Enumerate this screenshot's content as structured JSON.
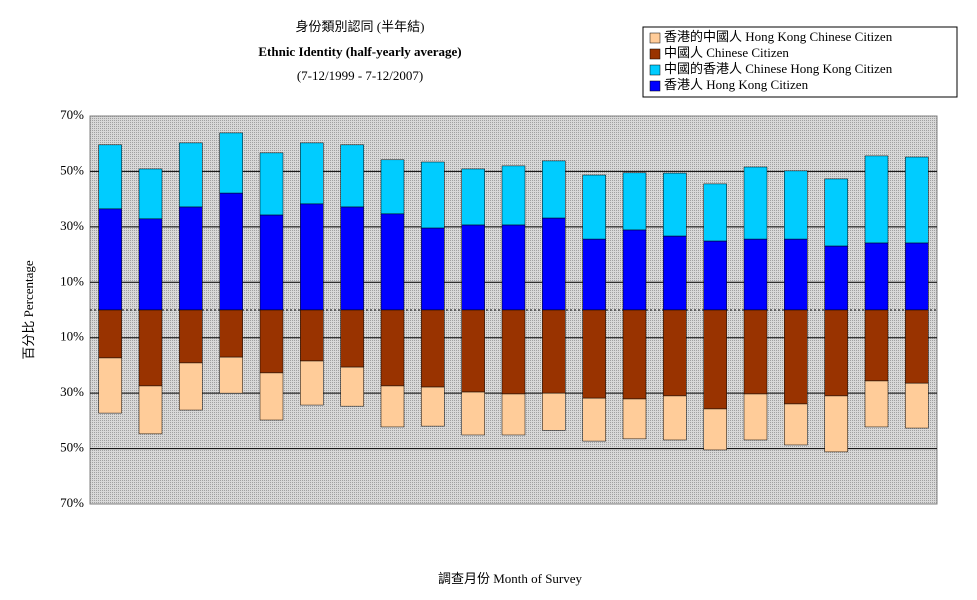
{
  "chart_data": {
    "type": "bar",
    "title": [
      "身份類別認同 (半年結)",
      "Ethnic Identity (half-yearly average)",
      "(7-12/1999 - 7-12/2007)"
    ],
    "y_label": "百分比 Percentage",
    "x_label": "調查月份 Month of Survey",
    "stacked": true,
    "categories": [
      null,
      null,
      null,
      null,
      null,
      null,
      null,
      null,
      null,
      null,
      null,
      null,
      null,
      null,
      null,
      null,
      null,
      null,
      null,
      null,
      null
    ],
    "series": [
      {
        "name": "香港的中國人 Hong Kong Chinese Citizen",
        "color": "#ffcc99",
        "values": [
          -19.9,
          -17.3,
          -17.0,
          -13.0,
          -17.0,
          -15.9,
          -14.1,
          -14.8,
          -14.1,
          -15.5,
          -14.8,
          -13.4,
          -15.5,
          -14.4,
          -15.9,
          -14.8,
          -16.6,
          -14.8,
          -20.2,
          -16.6,
          -16.2
        ]
      },
      {
        "name": "中國人 Chinese Citizen",
        "color": "#993300",
        "values": [
          -17.3,
          -27.4,
          -19.1,
          -17.0,
          -22.7,
          -18.4,
          -20.6,
          -27.4,
          -27.8,
          -29.6,
          -30.3,
          -30.0,
          -31.8,
          -32.1,
          -31.0,
          -35.7,
          -30.3,
          -33.9,
          -31.0,
          -25.6,
          -26.4
        ]
      },
      {
        "name": "中國的香港人 Chinese Hong Kong Citizen",
        "color": "#00ccff",
        "values": [
          23.1,
          18.0,
          23.1,
          21.7,
          22.4,
          22.0,
          22.4,
          19.5,
          23.8,
          20.2,
          21.3,
          20.6,
          23.1,
          20.6,
          22.7,
          20.6,
          26.0,
          24.6,
          24.2,
          31.4,
          31.0
        ]
      },
      {
        "name": "香港人 Hong Kong Citizen",
        "color": "#0000ff",
        "values": [
          36.5,
          32.9,
          37.2,
          42.2,
          34.3,
          38.3,
          37.2,
          34.7,
          29.6,
          30.7,
          30.7,
          33.2,
          25.6,
          28.9,
          26.7,
          24.9,
          25.6,
          25.6,
          23.1,
          24.2,
          24.2
        ]
      }
    ],
    "ylim": [
      -70,
      70
    ],
    "yticks": [
      {
        "value": 70,
        "label": "70%"
      },
      {
        "value": 50,
        "label": "50%"
      },
      {
        "value": 30,
        "label": "30%"
      },
      {
        "value": 10,
        "label": "10%"
      },
      {
        "value": -10,
        "label": "10%"
      },
      {
        "value": -30,
        "label": "30%"
      },
      {
        "value": -50,
        "label": "50%"
      },
      {
        "value": -70,
        "label": "70%"
      }
    ],
    "grid": true,
    "legend": "top-right"
  }
}
